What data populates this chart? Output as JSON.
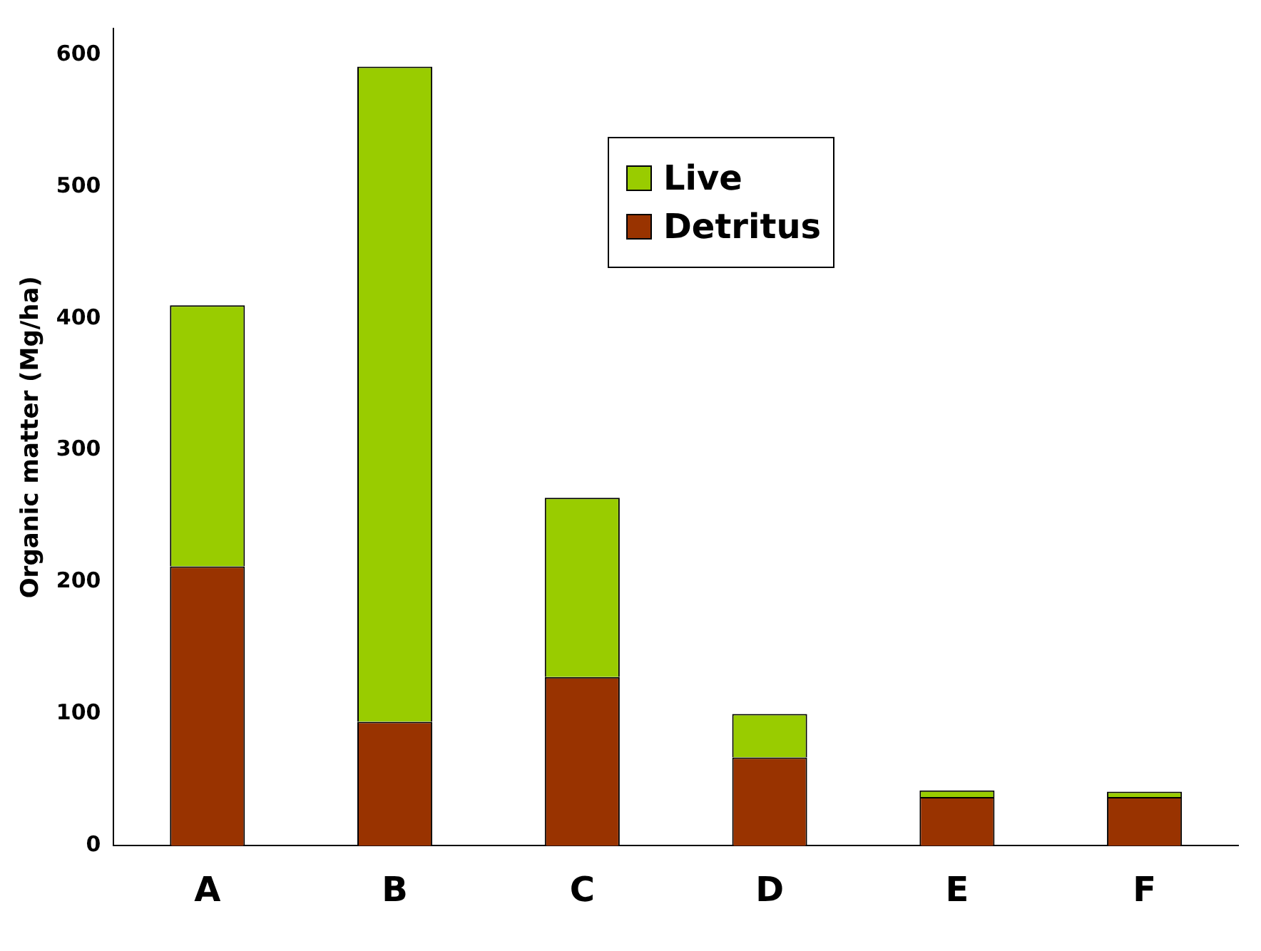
{
  "chart_data": {
    "type": "bar",
    "ylabel": "Organic matter (Mg/ha)",
    "categories": [
      "A",
      "B",
      "C",
      "D",
      "E",
      "F"
    ],
    "stacked": true,
    "series": [
      {
        "name": "Detritus",
        "color": "#993300",
        "values": [
          212,
          94,
          128,
          67,
          37,
          37
        ]
      },
      {
        "name": "Live",
        "color": "#99cc00",
        "values": [
          198,
          497,
          136,
          33,
          5,
          4
        ]
      }
    ],
    "ylim": [
      0,
      620
    ],
    "yticks": [
      0,
      100,
      200,
      300,
      400,
      500,
      600
    ],
    "grid": false,
    "legend": "top"
  }
}
